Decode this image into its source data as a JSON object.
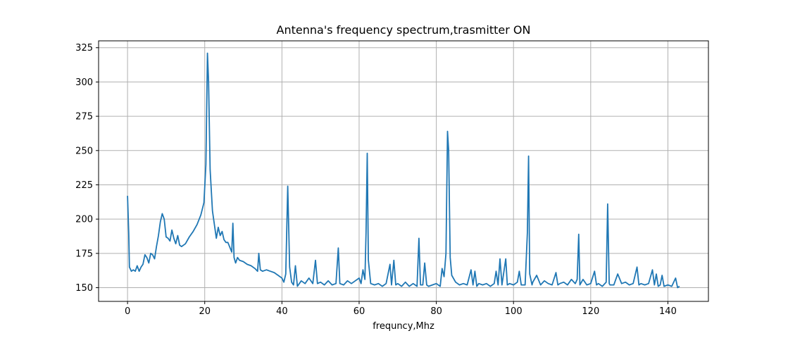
{
  "chart_data": {
    "type": "line",
    "title": "Antenna's frequency spectrum,trasmitter ON",
    "xlabel": "frequncy,Mhz",
    "ylabel": "",
    "xlim": [
      -7.5,
      150.5
    ],
    "ylim": [
      140,
      330
    ],
    "xticks": [
      0,
      20,
      40,
      60,
      80,
      100,
      120,
      140
    ],
    "yticks": [
      150,
      175,
      200,
      225,
      250,
      275,
      300,
      325
    ],
    "grid": true,
    "series": [
      {
        "color": "#1f77b4",
        "points": [
          [
            0,
            217
          ],
          [
            0.3,
            190
          ],
          [
            0.5,
            165
          ],
          [
            1,
            162
          ],
          [
            1.5,
            163
          ],
          [
            2,
            162
          ],
          [
            2.5,
            166
          ],
          [
            3,
            162
          ],
          [
            3.5,
            165
          ],
          [
            4,
            167
          ],
          [
            4.5,
            174
          ],
          [
            5,
            172
          ],
          [
            5.5,
            168
          ],
          [
            6,
            175
          ],
          [
            6.5,
            174
          ],
          [
            7,
            171
          ],
          [
            7.5,
            180
          ],
          [
            8,
            188
          ],
          [
            8.5,
            198
          ],
          [
            9,
            204
          ],
          [
            9.5,
            200
          ],
          [
            10,
            187
          ],
          [
            10.5,
            186
          ],
          [
            11,
            184
          ],
          [
            11.5,
            192
          ],
          [
            12,
            186
          ],
          [
            12.5,
            182
          ],
          [
            13,
            188
          ],
          [
            13.5,
            181
          ],
          [
            14,
            180
          ],
          [
            15,
            182
          ],
          [
            16,
            187
          ],
          [
            17,
            191
          ],
          [
            18,
            196
          ],
          [
            19,
            203
          ],
          [
            19.8,
            212
          ],
          [
            20.3,
            240
          ],
          [
            20.7,
            321
          ],
          [
            21,
            300
          ],
          [
            21.4,
            236
          ],
          [
            22,
            206
          ],
          [
            23,
            186
          ],
          [
            23.5,
            194
          ],
          [
            24,
            188
          ],
          [
            24.5,
            191
          ],
          [
            25,
            185
          ],
          [
            25.5,
            183
          ],
          [
            26,
            183
          ],
          [
            27,
            176
          ],
          [
            27.3,
            197
          ],
          [
            27.6,
            172
          ],
          [
            28,
            168
          ],
          [
            28.5,
            172
          ],
          [
            29,
            170
          ],
          [
            30,
            169
          ],
          [
            31,
            167
          ],
          [
            32,
            166
          ],
          [
            33,
            164
          ],
          [
            33.7,
            162
          ],
          [
            34,
            175
          ],
          [
            34.4,
            163
          ],
          [
            35,
            162
          ],
          [
            36,
            163
          ],
          [
            37,
            162
          ],
          [
            38,
            161
          ],
          [
            39,
            159
          ],
          [
            40,
            157
          ],
          [
            40.5,
            154
          ],
          [
            41,
            160
          ],
          [
            41.5,
            224
          ],
          [
            42,
            165
          ],
          [
            42.5,
            154
          ],
          [
            43,
            152
          ],
          [
            43.5,
            166
          ],
          [
            44,
            151
          ],
          [
            45,
            155
          ],
          [
            46,
            153
          ],
          [
            47,
            157
          ],
          [
            47.5,
            155
          ],
          [
            48,
            153
          ],
          [
            48.7,
            170
          ],
          [
            49.2,
            153
          ],
          [
            50,
            154
          ],
          [
            51,
            152
          ],
          [
            52,
            155
          ],
          [
            53,
            152
          ],
          [
            54,
            153
          ],
          [
            54.6,
            179
          ],
          [
            55,
            153
          ],
          [
            56,
            152
          ],
          [
            57,
            155
          ],
          [
            58,
            153
          ],
          [
            59,
            155
          ],
          [
            60,
            157
          ],
          [
            60.5,
            153
          ],
          [
            61,
            163
          ],
          [
            61.5,
            156
          ],
          [
            61.8,
            190
          ],
          [
            62.1,
            248
          ],
          [
            62.4,
            170
          ],
          [
            63,
            153
          ],
          [
            64,
            152
          ],
          [
            65,
            153
          ],
          [
            66,
            151
          ],
          [
            67,
            153
          ],
          [
            68,
            167
          ],
          [
            68.4,
            152
          ],
          [
            69,
            170
          ],
          [
            69.5,
            152
          ],
          [
            70,
            153
          ],
          [
            71,
            151
          ],
          [
            72,
            154
          ],
          [
            73,
            151
          ],
          [
            74,
            153
          ],
          [
            75,
            151
          ],
          [
            75.5,
            186
          ],
          [
            75.9,
            152
          ],
          [
            76.5,
            152
          ],
          [
            77,
            168
          ],
          [
            77.5,
            152
          ],
          [
            78,
            151
          ],
          [
            79,
            152
          ],
          [
            80,
            153
          ],
          [
            81,
            151
          ],
          [
            81.5,
            164
          ],
          [
            82,
            158
          ],
          [
            82.5,
            175
          ],
          [
            82.9,
            264
          ],
          [
            83.2,
            250
          ],
          [
            83.6,
            172
          ],
          [
            84,
            159
          ],
          [
            85,
            154
          ],
          [
            86,
            152
          ],
          [
            87,
            153
          ],
          [
            88,
            152
          ],
          [
            89,
            163
          ],
          [
            89.5,
            152
          ],
          [
            90,
            162
          ],
          [
            90.5,
            151
          ],
          [
            91,
            153
          ],
          [
            92,
            152
          ],
          [
            93,
            153
          ],
          [
            94,
            151
          ],
          [
            95,
            153
          ],
          [
            95.5,
            162
          ],
          [
            96,
            152
          ],
          [
            96.5,
            171
          ],
          [
            97,
            152
          ],
          [
            98,
            171
          ],
          [
            98.4,
            152
          ],
          [
            99,
            153
          ],
          [
            100,
            152
          ],
          [
            101,
            154
          ],
          [
            101.5,
            162
          ],
          [
            102,
            152
          ],
          [
            103,
            152
          ],
          [
            103.6,
            190
          ],
          [
            103.9,
            246
          ],
          [
            104.2,
            160
          ],
          [
            104.8,
            152
          ],
          [
            105,
            154
          ],
          [
            106,
            159
          ],
          [
            107,
            152
          ],
          [
            108,
            155
          ],
          [
            109,
            153
          ],
          [
            110,
            152
          ],
          [
            111,
            161
          ],
          [
            111.5,
            152
          ],
          [
            112,
            153
          ],
          [
            113,
            154
          ],
          [
            114,
            152
          ],
          [
            115,
            156
          ],
          [
            116,
            153
          ],
          [
            116.5,
            156
          ],
          [
            116.9,
            189
          ],
          [
            117.2,
            152
          ],
          [
            118,
            156
          ],
          [
            119,
            152
          ],
          [
            120,
            153
          ],
          [
            121,
            162
          ],
          [
            121.5,
            152
          ],
          [
            122,
            153
          ],
          [
            123,
            151
          ],
          [
            124,
            154
          ],
          [
            124.4,
            211
          ],
          [
            124.8,
            153
          ],
          [
            125,
            152
          ],
          [
            126,
            152
          ],
          [
            127,
            160
          ],
          [
            128,
            153
          ],
          [
            129,
            154
          ],
          [
            130,
            152
          ],
          [
            131,
            153
          ],
          [
            132,
            165
          ],
          [
            132.5,
            152
          ],
          [
            133,
            153
          ],
          [
            134,
            152
          ],
          [
            135,
            153
          ],
          [
            136,
            163
          ],
          [
            136.5,
            152
          ],
          [
            137,
            160
          ],
          [
            137.5,
            151
          ],
          [
            138,
            152
          ],
          [
            138.5,
            159
          ],
          [
            139,
            151
          ],
          [
            140,
            152
          ],
          [
            141,
            151
          ],
          [
            142,
            157
          ],
          [
            142.5,
            150
          ],
          [
            143,
            151
          ]
        ]
      }
    ]
  }
}
